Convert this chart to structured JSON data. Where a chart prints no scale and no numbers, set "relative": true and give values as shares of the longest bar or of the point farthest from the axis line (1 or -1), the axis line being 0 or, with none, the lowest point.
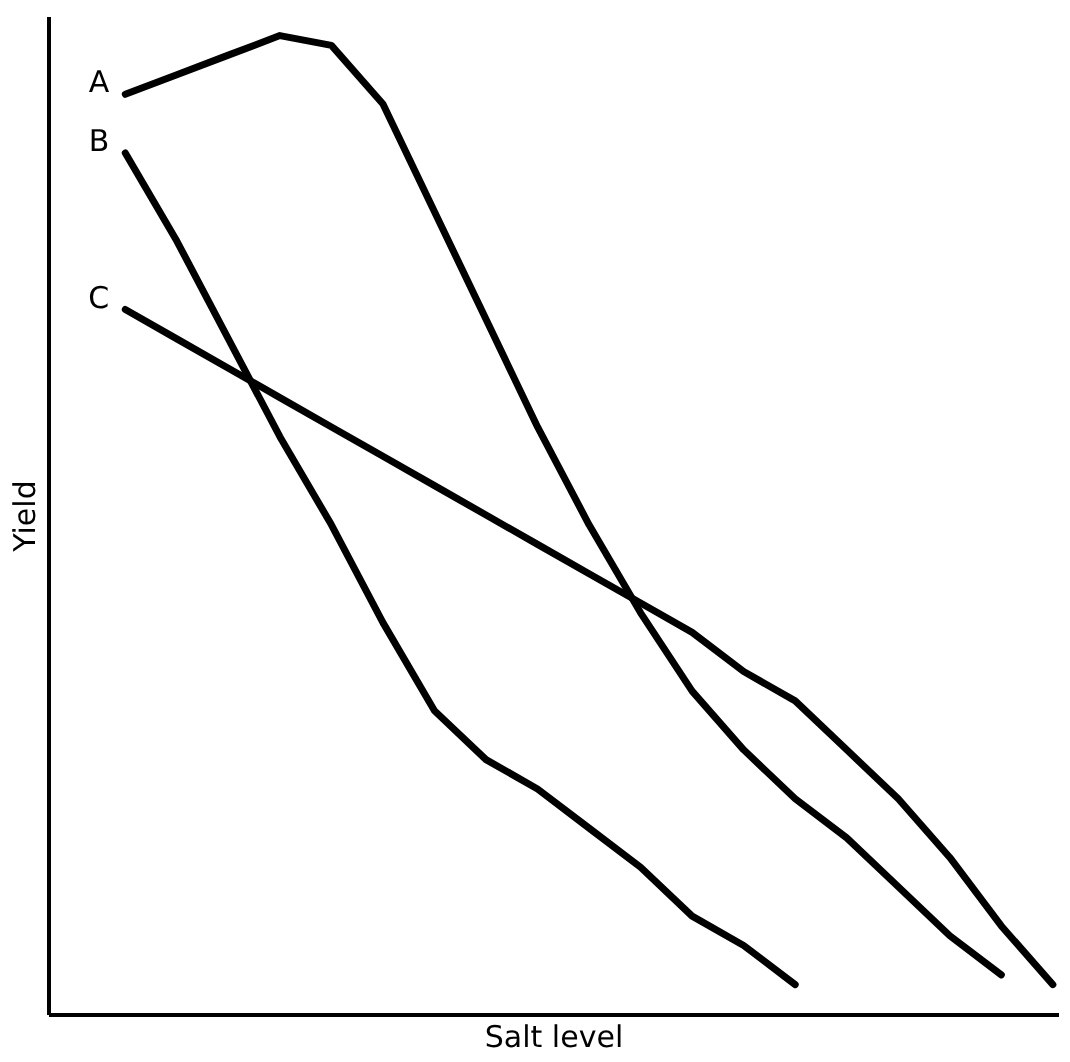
{
  "chart_data": {
    "type": "line",
    "relative": true,
    "xlabel": "Salt level",
    "ylabel": "Yield",
    "grid": false,
    "marker": "none",
    "line_style": "solid",
    "categories": [
      null,
      null,
      null,
      null,
      null,
      null,
      null,
      null,
      null,
      null,
      null,
      null,
      null,
      null,
      null,
      null,
      null,
      null,
      null
    ],
    "series": [
      {
        "name": "A",
        "color": "#000000",
        "values": [
          0.94,
          0.96,
          0.98,
          1.0,
          0.99,
          0.93,
          0.82,
          0.71,
          0.6,
          0.5,
          0.41,
          0.33,
          0.27,
          0.22,
          0.18,
          0.13,
          0.08,
          0.04,
          null
        ]
      },
      {
        "name": "B",
        "color": "#000000",
        "values": [
          0.88,
          0.79,
          0.69,
          0.59,
          0.5,
          0.4,
          0.31,
          0.26,
          0.23,
          0.19,
          0.15,
          0.1,
          0.07,
          0.03,
          null,
          null,
          null,
          null,
          null
        ]
      },
      {
        "name": "C",
        "color": "#000000",
        "values": [
          0.72,
          0.69,
          0.66,
          0.63,
          0.6,
          0.57,
          0.54,
          0.51,
          0.48,
          0.45,
          0.42,
          0.39,
          0.35,
          0.32,
          0.27,
          0.22,
          0.16,
          0.09,
          0.03
        ]
      }
    ]
  }
}
